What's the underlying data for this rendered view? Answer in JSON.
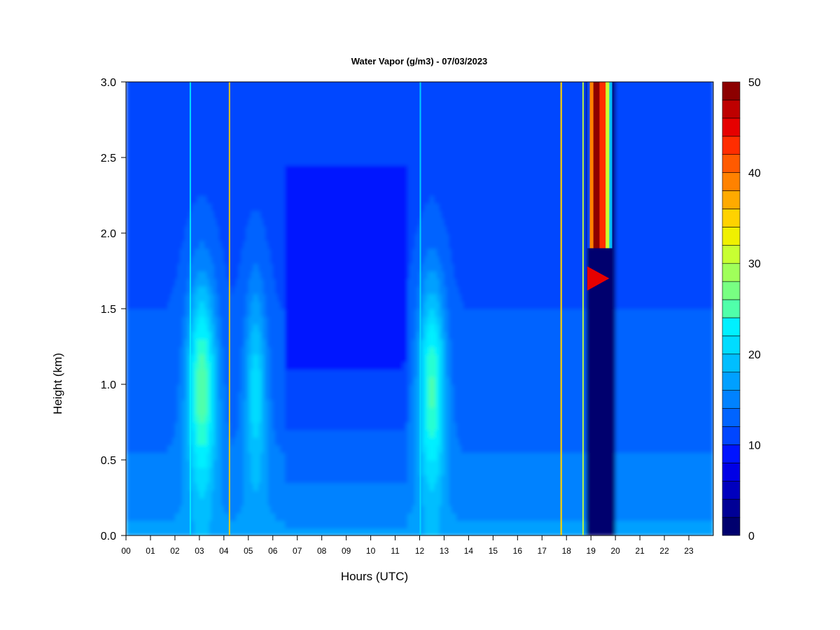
{
  "chart_data": {
    "type": "heatmap",
    "title": "Water Vapor (g/m3) - 07/03/2023",
    "xlabel": "Hours (UTC)",
    "ylabel": "Height (km)",
    "x_ticks": [
      "00",
      "01",
      "02",
      "03",
      "04",
      "05",
      "06",
      "07",
      "08",
      "09",
      "10",
      "11",
      "12",
      "13",
      "14",
      "15",
      "16",
      "17",
      "18",
      "19",
      "20",
      "21",
      "22",
      "23"
    ],
    "y_ticks": [
      "0.0",
      "0.5",
      "1.0",
      "1.5",
      "2.0",
      "2.5",
      "3.0"
    ],
    "xlim": [
      0,
      24
    ],
    "ylim": [
      0,
      3.0
    ],
    "colorbar": {
      "ticks": [
        "0",
        "10",
        "20",
        "30",
        "40",
        "50"
      ],
      "range": [
        0,
        50
      ],
      "levels": 25,
      "colors": [
        "#00006e",
        "#000096",
        "#0000be",
        "#0000e6",
        "#0014ff",
        "#0046ff",
        "#0064ff",
        "#0082ff",
        "#00a0ff",
        "#00beff",
        "#00dcff",
        "#00f0ff",
        "#28ffd2",
        "#50ffaa",
        "#78ff82",
        "#a0ff5a",
        "#c8ff32",
        "#f0f000",
        "#ffd200",
        "#ffaa00",
        "#ff8200",
        "#ff5a00",
        "#ff2d00",
        "#e60000",
        "#be0000",
        "#8c0000"
      ]
    },
    "grid": false,
    "legend": "colorbar-right"
  }
}
